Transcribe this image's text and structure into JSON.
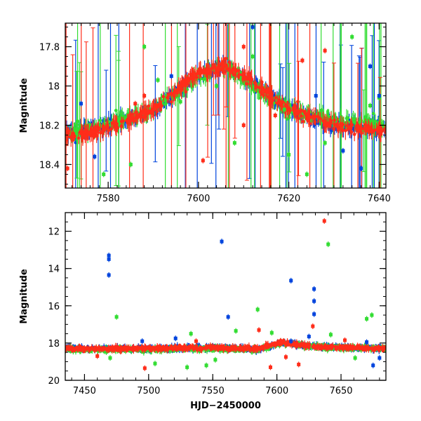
{
  "chart_data": [
    {
      "type": "scatter",
      "title": "",
      "xlabel": "",
      "ylabel": "Magnitude",
      "xlim": [
        7570.5,
        7641.5
      ],
      "ylim": [
        18.52,
        17.68
      ],
      "y_inverted": true,
      "xticks": [
        7580,
        7600,
        7620,
        7640
      ],
      "yticks": [
        17.8,
        18,
        18.2,
        18.4
      ],
      "grid": false,
      "series": [
        {
          "color": "#0044dd",
          "profile": [
            [
              7570.5,
              18.24
            ],
            [
              7580,
              18.2
            ],
            [
              7590,
              18.12
            ],
            [
              7600,
              17.95
            ],
            [
              7606,
              17.9
            ],
            [
              7612,
              17.98
            ],
            [
              7620,
              18.12
            ],
            [
              7630,
              18.2
            ],
            [
              7641.5,
              18.22
            ]
          ]
        },
        {
          "color": "#33dd33",
          "profile": [
            [
              7570.5,
              18.25
            ],
            [
              7580,
              18.2
            ],
            [
              7590,
              18.12
            ],
            [
              7600,
              17.95
            ],
            [
              7606,
              17.9
            ],
            [
              7612,
              18.0
            ],
            [
              7620,
              18.12
            ],
            [
              7630,
              18.18
            ],
            [
              7641.5,
              18.2
            ]
          ]
        },
        {
          "color": "#ff2d1a",
          "profile": [
            [
              7570.5,
              18.26
            ],
            [
              7580,
              18.22
            ],
            [
              7590,
              18.12
            ],
            [
              7600,
              17.93
            ],
            [
              7606,
              17.9
            ],
            [
              7612,
              17.98
            ],
            [
              7620,
              18.12
            ],
            [
              7630,
              18.2
            ],
            [
              7641.5,
              18.23
            ]
          ]
        }
      ],
      "outliers": [
        {
          "color": "#33dd33",
          "points": [
            [
              7588,
              17.8
            ],
            [
              7591,
              17.97
            ],
            [
              7596,
              18.08
            ],
            [
              7604,
              18.0
            ],
            [
              7608,
              18.29
            ],
            [
              7612,
              17.85
            ],
            [
              7619,
              18.12
            ],
            [
              7620,
              18.35
            ],
            [
              7624,
              18.45
            ],
            [
              7628,
              18.29
            ],
            [
              7634,
              17.75
            ],
            [
              7638,
              18.1
            ],
            [
              7640,
              18.06
            ],
            [
              7585,
              18.4
            ],
            [
              7579,
              18.45
            ]
          ]
        },
        {
          "color": "#0044dd",
          "points": [
            [
              7574,
              18.09
            ],
            [
              7577,
              18.36
            ],
            [
              7594,
              17.95
            ],
            [
              7612,
              17.7
            ],
            [
              7626,
              18.05
            ],
            [
              7632,
              18.33
            ],
            [
              7636,
              18.42
            ],
            [
              7638,
              17.9
            ],
            [
              7640,
              18.05
            ]
          ]
        },
        {
          "color": "#ff2d1a",
          "points": [
            [
              7571,
              18.42
            ],
            [
              7586,
              18.09
            ],
            [
              7601,
              18.38
            ],
            [
              7610,
              17.8
            ],
            [
              7617,
              18.15
            ],
            [
              7623,
              17.87
            ],
            [
              7628,
              17.82
            ],
            [
              7588,
              18.05
            ],
            [
              7610,
              18.2
            ]
          ]
        }
      ]
    },
    {
      "type": "scatter",
      "title": "",
      "xlabel": "HJD−2450000",
      "ylabel": "Magnitude",
      "xlim": [
        7435,
        7685
      ],
      "ylim": [
        20,
        11
      ],
      "y_inverted": true,
      "xticks": [
        7450,
        7500,
        7550,
        7600,
        7650
      ],
      "yticks": [
        12,
        14,
        16,
        18,
        20
      ],
      "grid": false,
      "series": [
        {
          "color": "#0044dd",
          "profile": [
            [
              7435,
              18.3
            ],
            [
              7500,
              18.3
            ],
            [
              7550,
              18.25
            ],
            [
              7585,
              18.35
            ],
            [
              7605,
              18.0
            ],
            [
              7630,
              18.2
            ],
            [
              7685,
              18.3
            ]
          ]
        },
        {
          "color": "#33dd33",
          "profile": [
            [
              7435,
              18.35
            ],
            [
              7500,
              18.35
            ],
            [
              7550,
              18.3
            ],
            [
              7585,
              18.35
            ],
            [
              7605,
              18.0
            ],
            [
              7630,
              18.2
            ],
            [
              7685,
              18.3
            ]
          ]
        },
        {
          "color": "#ff2d1a",
          "profile": [
            [
              7435,
              18.3
            ],
            [
              7500,
              18.3
            ],
            [
              7550,
              18.25
            ],
            [
              7585,
              18.3
            ],
            [
              7605,
              17.95
            ],
            [
              7630,
              18.2
            ],
            [
              7685,
              18.3
            ]
          ]
        }
      ],
      "outliers": [
        {
          "color": "#0044dd",
          "points": [
            [
              7469,
              13.3
            ],
            [
              7469,
              13.5
            ],
            [
              7469,
              14.35
            ],
            [
              7557,
              12.55
            ],
            [
              7562,
              16.6
            ],
            [
              7611,
              14.65
            ],
            [
              7629,
              15.1
            ],
            [
              7629,
              15.75
            ],
            [
              7629,
              16.45
            ],
            [
              7611,
              17.9
            ],
            [
              7495,
              17.9
            ],
            [
              7521,
              17.75
            ],
            [
              7625,
              17.65
            ],
            [
              7670,
              17.95
            ],
            [
              7680,
              18.8
            ],
            [
              7675,
              19.2
            ]
          ]
        },
        {
          "color": "#33dd33",
          "points": [
            [
              7640,
              12.7
            ],
            [
              7475,
              16.6
            ],
            [
              7585,
              16.2
            ],
            [
              7674,
              16.5
            ],
            [
              7642,
              17.55
            ],
            [
              7670,
              16.7
            ],
            [
              7533,
              17.5
            ],
            [
              7530,
              19.3
            ],
            [
              7505,
              19.1
            ],
            [
              7545,
              19.2
            ],
            [
              7596,
              17.45
            ],
            [
              7470,
              18.8
            ],
            [
              7552,
              18.9
            ],
            [
              7568,
              17.35
            ],
            [
              7661,
              18.8
            ]
          ]
        },
        {
          "color": "#ff2d1a",
          "points": [
            [
              7637,
              11.45
            ],
            [
              7497,
              19.35
            ],
            [
              7595,
              19.3
            ],
            [
              7617,
              19.15
            ],
            [
              7628,
              17.1
            ],
            [
              7537,
              17.9
            ],
            [
              7586,
              17.3
            ],
            [
              7653,
              17.85
            ],
            [
              7460,
              18.7
            ],
            [
              7607,
              18.75
            ]
          ]
        }
      ]
    }
  ]
}
